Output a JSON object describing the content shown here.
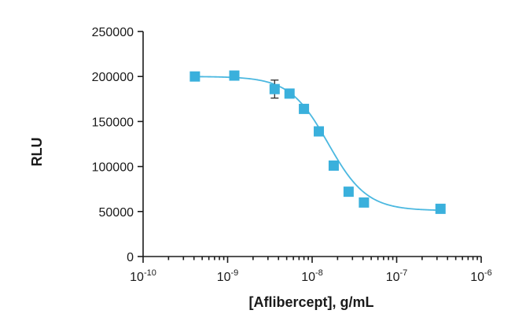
{
  "chart_data": {
    "type": "scatter",
    "title": "",
    "xlabel": "[Aflibercept], g/mL",
    "ylabel": "RLU",
    "x_scale": "log",
    "xlim": [
      1e-10,
      1e-06
    ],
    "ylim": [
      0,
      250000
    ],
    "x_ticks": [
      {
        "value": 1e-10,
        "base": "10",
        "exp": "-10"
      },
      {
        "value": 1e-09,
        "base": "10",
        "exp": "-9"
      },
      {
        "value": 1e-08,
        "base": "10",
        "exp": "-8"
      },
      {
        "value": 1e-07,
        "base": "10",
        "exp": "-7"
      },
      {
        "value": 1e-06,
        "base": "10",
        "exp": "-6"
      }
    ],
    "y_ticks": [
      {
        "value": 0,
        "label": "0"
      },
      {
        "value": 50000,
        "label": "50000"
      },
      {
        "value": 100000,
        "label": "100000"
      },
      {
        "value": 150000,
        "label": "150000"
      },
      {
        "value": 200000,
        "label": "200000"
      },
      {
        "value": 250000,
        "label": "250000"
      }
    ],
    "grid": false,
    "legend": "none",
    "color": "#3ab0dc",
    "curve_color": "#4bb8e0",
    "series": [
      {
        "points": [
          {
            "x": 4.1e-10,
            "y": 200000,
            "err": 0
          },
          {
            "x": 1.2e-09,
            "y": 201000,
            "err": 0
          },
          {
            "x": 3.6e-09,
            "y": 186000,
            "err": 10000
          },
          {
            "x": 5.4e-09,
            "y": 181000,
            "err": 0
          },
          {
            "x": 8e-09,
            "y": 164000,
            "err": 0
          },
          {
            "x": 1.2e-08,
            "y": 139000,
            "err": 0
          },
          {
            "x": 1.8e-08,
            "y": 101000,
            "err": 0
          },
          {
            "x": 2.7e-08,
            "y": 72000,
            "err": 0
          },
          {
            "x": 4.1e-08,
            "y": 60000,
            "err": 0
          },
          {
            "x": 3.3e-07,
            "y": 53000,
            "err": 0
          }
        ]
      }
    ],
    "fit": {
      "model": "4PL",
      "top": 200000,
      "bottom": 51000,
      "ec50": 1.55e-08,
      "hill": -1.9
    }
  }
}
